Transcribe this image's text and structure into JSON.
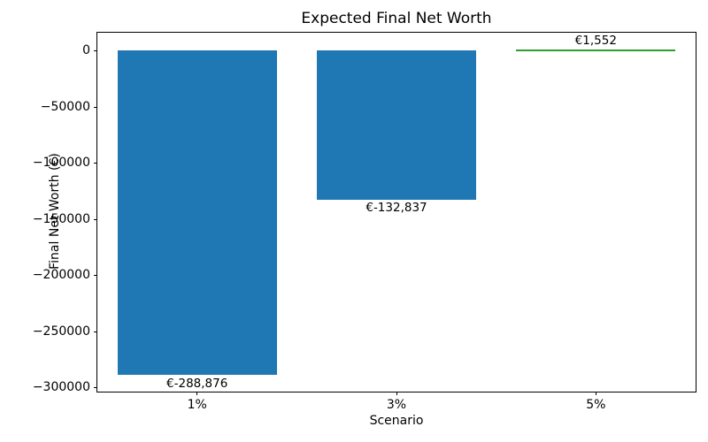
{
  "chart_data": {
    "type": "bar",
    "title": "Expected Final Net Worth",
    "xlabel": "Scenario",
    "ylabel": "Final Net Worth (€)",
    "categories": [
      "1%",
      "3%",
      "5%"
    ],
    "values": [
      -288876,
      -132837,
      1552
    ],
    "bar_labels": [
      "€-288,876",
      "€-132,837",
      "€1,552"
    ],
    "bar_colors": [
      "#1f77b4",
      "#1f77b4",
      "#2ca02c"
    ],
    "ylim": [
      -303397,
      16073
    ],
    "yticks": [
      {
        "value": 0,
        "label": "0"
      },
      {
        "value": -50000,
        "label": "−50000"
      },
      {
        "value": -100000,
        "label": "−100000"
      },
      {
        "value": -150000,
        "label": "−150000"
      },
      {
        "value": -200000,
        "label": "−200000"
      },
      {
        "value": -250000,
        "label": "−250000"
      },
      {
        "value": -300000,
        "label": "−300000"
      }
    ],
    "grid": false,
    "legend": false,
    "background_color": "#ffffff",
    "spine_color": "#000000"
  }
}
